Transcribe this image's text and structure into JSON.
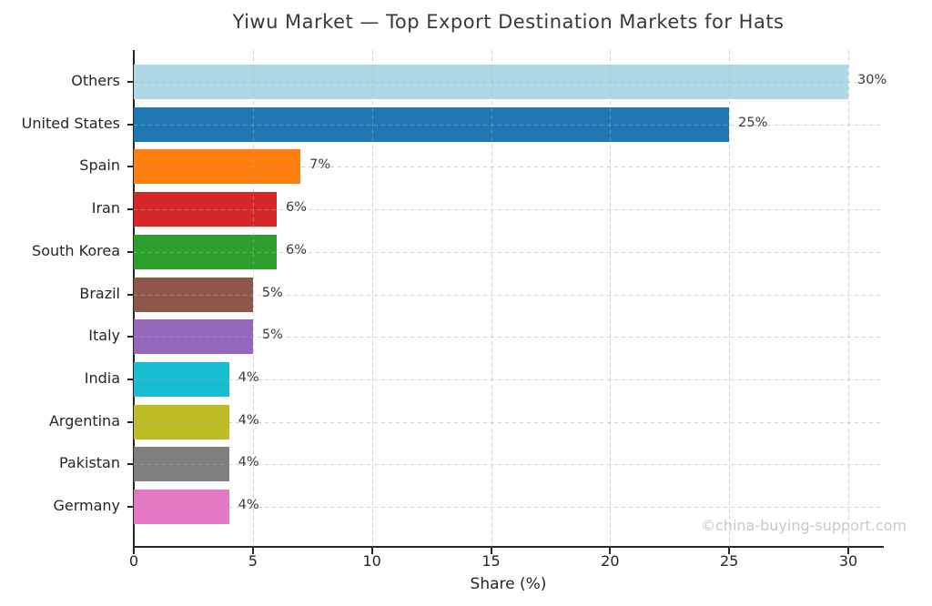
{
  "chart_data": {
    "type": "bar",
    "orientation": "horizontal",
    "title": "Yiwu Market — Top Export Destination Markets for Hats",
    "xlabel": "Share (%)",
    "ylabel": "",
    "xlim": [
      0,
      31.5
    ],
    "xticks": [
      0,
      5,
      10,
      15,
      20,
      25,
      30
    ],
    "grid": "dashed, both axes, drawn over bars",
    "legend": "none",
    "categories": [
      "Others",
      "United States",
      "Spain",
      "Iran",
      "South Korea",
      "Brazil",
      "Italy",
      "India",
      "Argentina",
      "Pakistan",
      "Germany"
    ],
    "values": [
      30,
      25,
      7,
      6,
      6,
      5,
      5,
      4,
      4,
      4,
      4
    ],
    "value_labels": [
      "30%",
      "25%",
      "7%",
      "6%",
      "6%",
      "5%",
      "5%",
      "4%",
      "4%",
      "4%",
      "4%"
    ],
    "bar_colors": [
      "#add8e6",
      "#1f77b4",
      "#ff7f0e",
      "#d62728",
      "#2ca02c",
      "#8c564b",
      "#9467bd",
      "#17becf",
      "#bcbd22",
      "#7f7f7f",
      "#e377c2"
    ]
  },
  "watermark": "©china-buying-support.com",
  "colors": {
    "background": "#ffffff",
    "title_text": "#3a3a3a",
    "tick_text": "#262626",
    "value_text": "#3d3d3d",
    "spine": "#262626",
    "grid": "#aaaaaa",
    "watermark_text": "#c9c9c9"
  }
}
